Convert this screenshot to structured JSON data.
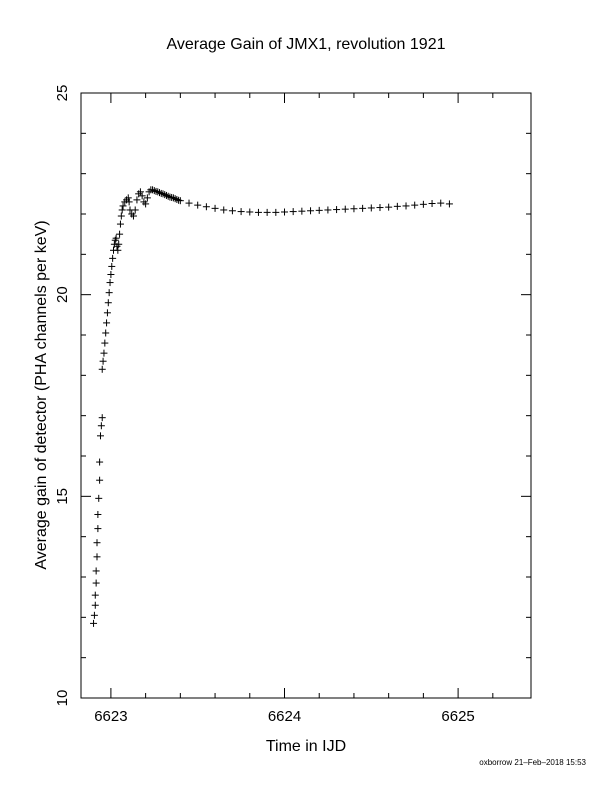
{
  "chart_data": {
    "type": "scatter",
    "title": "Average Gain of JMX1, revolution 1921",
    "xlabel": "Time in IJD",
    "ylabel": "Average gain of detector (PHA channels per keV)",
    "xlim": [
      6622.66,
      6625.3
    ],
    "ylim": [
      10,
      25
    ],
    "xticks": [
      6623,
      6624,
      6625
    ],
    "yticks": [
      10,
      15,
      20,
      25
    ],
    "grid": false,
    "marker": "plus",
    "x": [
      6622.9,
      6622.905,
      6622.91,
      6622.91,
      6622.915,
      6622.915,
      6622.92,
      6622.92,
      6622.925,
      6622.925,
      6622.93,
      6622.935,
      6622.935,
      6622.94,
      6622.945,
      6622.95,
      6622.95,
      6622.955,
      6622.96,
      6622.965,
      6622.97,
      6622.975,
      6622.98,
      6622.985,
      6622.99,
      6622.995,
      6623.0,
      6623.005,
      6623.01,
      6623.015,
      6623.02,
      6623.025,
      6623.03,
      6623.035,
      6623.04,
      6623.045,
      6623.05,
      6623.055,
      6623.06,
      6623.065,
      6623.07,
      6623.08,
      6623.09,
      6623.1,
      6623.105,
      6623.11,
      6623.12,
      6623.13,
      6623.14,
      6623.15,
      6623.16,
      6623.17,
      6623.18,
      6623.19,
      6623.2,
      6623.21,
      6623.22,
      6623.23,
      6623.24,
      6623.25,
      6623.26,
      6623.27,
      6623.28,
      6623.29,
      6623.3,
      6623.31,
      6623.32,
      6623.33,
      6623.34,
      6623.35,
      6623.36,
      6623.37,
      6623.38,
      6623.39,
      6623.4,
      6623.45,
      6623.5,
      6623.55,
      6623.6,
      6623.65,
      6623.7,
      6623.75,
      6623.8,
      6623.85,
      6623.9,
      6623.95,
      6624.0,
      6624.05,
      6624.1,
      6624.15,
      6624.2,
      6624.25,
      6624.3,
      6624.35,
      6624.4,
      6624.45,
      6624.5,
      6624.55,
      6624.6,
      6624.65,
      6624.7,
      6624.75,
      6624.8,
      6624.85,
      6624.9,
      6624.95
    ],
    "y": [
      11.85,
      12.05,
      12.3,
      12.55,
      12.85,
      13.15,
      13.5,
      13.85,
      14.2,
      14.55,
      14.95,
      15.4,
      15.85,
      16.5,
      16.75,
      16.95,
      18.15,
      18.35,
      18.55,
      18.8,
      19.05,
      19.3,
      19.55,
      19.8,
      20.05,
      20.3,
      20.5,
      20.7,
      20.9,
      21.1,
      21.25,
      21.35,
      21.4,
      21.2,
      21.1,
      21.25,
      21.5,
      21.75,
      21.95,
      22.1,
      22.2,
      22.3,
      22.35,
      22.4,
      22.3,
      22.1,
      22.0,
      21.95,
      22.1,
      22.35,
      22.5,
      22.55,
      22.45,
      22.3,
      22.25,
      22.4,
      22.55,
      22.6,
      22.6,
      22.58,
      22.56,
      22.55,
      22.53,
      22.51,
      22.5,
      22.48,
      22.46,
      22.44,
      22.42,
      22.41,
      22.4,
      22.38,
      22.36,
      22.34,
      22.33,
      22.27,
      22.22,
      22.18,
      22.14,
      22.1,
      22.08,
      22.06,
      22.05,
      22.04,
      22.04,
      22.04,
      22.05,
      22.06,
      22.07,
      22.08,
      22.09,
      22.1,
      22.11,
      22.12,
      22.13,
      22.14,
      22.15,
      22.16,
      22.17,
      22.19,
      22.2,
      22.22,
      22.24,
      22.26,
      22.27,
      22.25
    ]
  },
  "footer": "oxborrow 21–Feb–2018 15:53"
}
